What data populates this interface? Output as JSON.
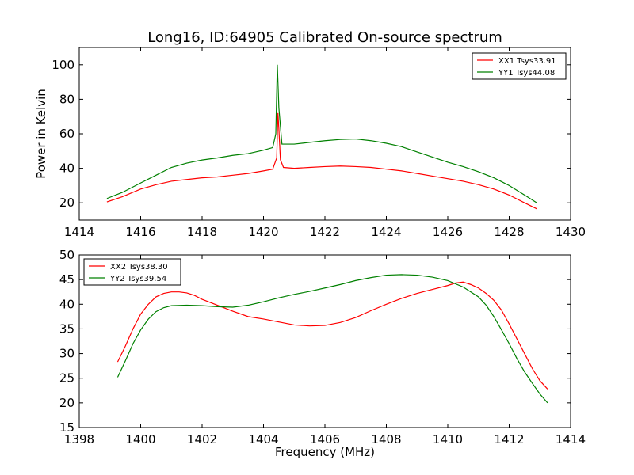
{
  "figure_title": "Long16, ID:64905 Calibrated On-source spectrum",
  "chart_data": [
    {
      "type": "line",
      "title": "Long16, ID:64905 Calibrated On-source spectrum",
      "xlabel": "",
      "ylabel": "Power in Kelvin",
      "xlim": [
        1414,
        1430
      ],
      "ylim": [
        10,
        110
      ],
      "xticks": [
        1414,
        1416,
        1418,
        1420,
        1422,
        1424,
        1426,
        1428,
        1430
      ],
      "yticks": [
        20,
        40,
        60,
        80,
        100
      ],
      "legend_position": "top-right",
      "grid": false,
      "series": [
        {
          "name": "XX1 Tsys33.91",
          "color": "#ff0000",
          "points": [
            [
              1414.9,
              20.5
            ],
            [
              1415.4,
              23.5
            ],
            [
              1416,
              28
            ],
            [
              1416.5,
              30.5
            ],
            [
              1417,
              32.5
            ],
            [
              1417.5,
              33.5
            ],
            [
              1418,
              34.5
            ],
            [
              1418.5,
              35
            ],
            [
              1419,
              36
            ],
            [
              1419.5,
              37
            ],
            [
              1420,
              38.5
            ],
            [
              1420.3,
              39.5
            ],
            [
              1420.43,
              46
            ],
            [
              1420.47,
              72
            ],
            [
              1420.5,
              63
            ],
            [
              1420.55,
              45
            ],
            [
              1420.65,
              40.5
            ],
            [
              1421,
              40
            ],
            [
              1421.5,
              40.5
            ],
            [
              1422,
              41
            ],
            [
              1422.5,
              41.3
            ],
            [
              1423,
              41
            ],
            [
              1423.5,
              40.5
            ],
            [
              1424,
              39.5
            ],
            [
              1424.5,
              38.5
            ],
            [
              1425,
              37
            ],
            [
              1425.5,
              35.5
            ],
            [
              1426,
              34
            ],
            [
              1426.5,
              32.5
            ],
            [
              1427,
              30.5
            ],
            [
              1427.5,
              28
            ],
            [
              1428,
              24.5
            ],
            [
              1428.5,
              20
            ],
            [
              1428.9,
              16.5
            ]
          ]
        },
        {
          "name": "YY1 Tsys44.08",
          "color": "#008000",
          "points": [
            [
              1414.9,
              22.5
            ],
            [
              1415.4,
              26
            ],
            [
              1416,
              31.5
            ],
            [
              1416.5,
              36
            ],
            [
              1417,
              40.5
            ],
            [
              1417.5,
              43
            ],
            [
              1418,
              44.8
            ],
            [
              1418.5,
              46
            ],
            [
              1419,
              47.5
            ],
            [
              1419.5,
              48.5
            ],
            [
              1420,
              50.5
            ],
            [
              1420.3,
              52
            ],
            [
              1420.4,
              60
            ],
            [
              1420.45,
              100
            ],
            [
              1420.5,
              75
            ],
            [
              1420.6,
              54
            ],
            [
              1421,
              54
            ],
            [
              1421.5,
              55
            ],
            [
              1422,
              56
            ],
            [
              1422.5,
              56.7
            ],
            [
              1423,
              57
            ],
            [
              1423.5,
              56
            ],
            [
              1424,
              54.5
            ],
            [
              1424.5,
              52.5
            ],
            [
              1425,
              49.5
            ],
            [
              1425.5,
              46.5
            ],
            [
              1426,
              43.5
            ],
            [
              1426.5,
              41
            ],
            [
              1427,
              38
            ],
            [
              1427.5,
              34.5
            ],
            [
              1428,
              30
            ],
            [
              1428.5,
              24.5
            ],
            [
              1428.9,
              20
            ]
          ]
        }
      ]
    },
    {
      "type": "line",
      "title": "",
      "xlabel": "Frequency (MHz)",
      "ylabel": "",
      "xlim": [
        1398,
        1414
      ],
      "ylim": [
        15,
        50
      ],
      "xticks": [
        1398,
        1400,
        1402,
        1404,
        1406,
        1408,
        1410,
        1412,
        1414
      ],
      "yticks": [
        15,
        20,
        25,
        30,
        35,
        40,
        45,
        50
      ],
      "legend_position": "top-left",
      "grid": false,
      "series": [
        {
          "name": "XX2 Tsys38.30",
          "color": "#ff0000",
          "points": [
            [
              1399.25,
              28.3
            ],
            [
              1399.5,
              31.5
            ],
            [
              1399.75,
              35
            ],
            [
              1400,
              38
            ],
            [
              1400.25,
              40
            ],
            [
              1400.5,
              41.5
            ],
            [
              1400.75,
              42.2
            ],
            [
              1401,
              42.5
            ],
            [
              1401.25,
              42.5
            ],
            [
              1401.5,
              42.3
            ],
            [
              1401.75,
              41.8
            ],
            [
              1402,
              41
            ],
            [
              1402.5,
              39.8
            ],
            [
              1403,
              38.6
            ],
            [
              1403.5,
              37.5
            ],
            [
              1404,
              37
            ],
            [
              1404.5,
              36.4
            ],
            [
              1405,
              35.8
            ],
            [
              1405.5,
              35.6
            ],
            [
              1406,
              35.7
            ],
            [
              1406.5,
              36.3
            ],
            [
              1407,
              37.3
            ],
            [
              1407.5,
              38.7
            ],
            [
              1408,
              40
            ],
            [
              1408.5,
              41.2
            ],
            [
              1409,
              42.2
            ],
            [
              1409.5,
              43
            ],
            [
              1410,
              43.8
            ],
            [
              1410.25,
              44.3
            ],
            [
              1410.5,
              44.5
            ],
            [
              1410.75,
              44
            ],
            [
              1411,
              43.3
            ],
            [
              1411.25,
              42.2
            ],
            [
              1411.5,
              40.8
            ],
            [
              1411.75,
              38.8
            ],
            [
              1412,
              36
            ],
            [
              1412.25,
              33
            ],
            [
              1412.5,
              30
            ],
            [
              1412.75,
              27
            ],
            [
              1413,
              24.5
            ],
            [
              1413.25,
              22.8
            ]
          ]
        },
        {
          "name": "YY2 Tsys39.54",
          "color": "#008000",
          "points": [
            [
              1399.25,
              25.2
            ],
            [
              1399.5,
              28.5
            ],
            [
              1399.75,
              32
            ],
            [
              1400,
              34.8
            ],
            [
              1400.25,
              37
            ],
            [
              1400.5,
              38.5
            ],
            [
              1400.75,
              39.3
            ],
            [
              1401,
              39.7
            ],
            [
              1401.5,
              39.8
            ],
            [
              1402,
              39.7
            ],
            [
              1402.5,
              39.5
            ],
            [
              1403,
              39.4
            ],
            [
              1403.5,
              39.8
            ],
            [
              1404,
              40.5
            ],
            [
              1404.5,
              41.3
            ],
            [
              1405,
              42
            ],
            [
              1405.5,
              42.6
            ],
            [
              1406,
              43.3
            ],
            [
              1406.5,
              44
            ],
            [
              1407,
              44.8
            ],
            [
              1407.5,
              45.4
            ],
            [
              1408,
              45.9
            ],
            [
              1408.5,
              46
            ],
            [
              1409,
              45.9
            ],
            [
              1409.5,
              45.5
            ],
            [
              1410,
              44.8
            ],
            [
              1410.5,
              43.5
            ],
            [
              1411,
              41.5
            ],
            [
              1411.25,
              39.8
            ],
            [
              1411.5,
              37.5
            ],
            [
              1411.75,
              34.8
            ],
            [
              1412,
              32
            ],
            [
              1412.25,
              29
            ],
            [
              1412.5,
              26.3
            ],
            [
              1412.75,
              24
            ],
            [
              1413,
              21.8
            ],
            [
              1413.25,
              20
            ]
          ]
        }
      ]
    }
  ]
}
